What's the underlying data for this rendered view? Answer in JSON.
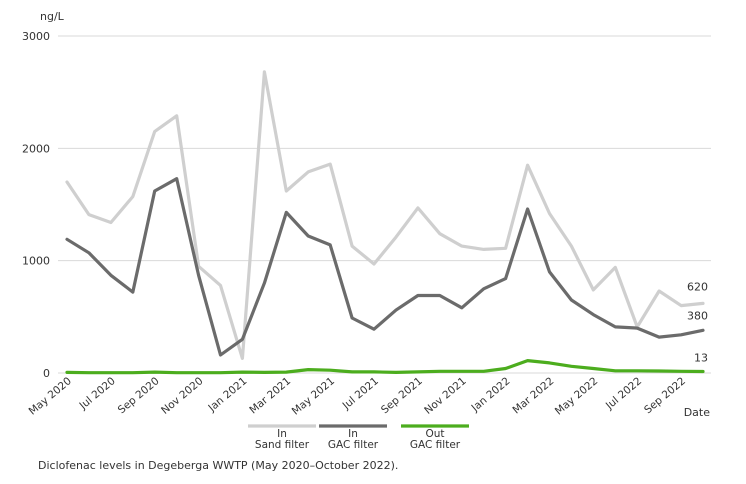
{
  "caption": "Diclofenac levels in Degeberga WWTP (May 2020–October 2022).",
  "chart_data": {
    "type": "line",
    "ylabel": "ng/L",
    "xlabel": "Date",
    "ylim": [
      0,
      3000
    ],
    "yticks": [
      0,
      1000,
      2000,
      3000
    ],
    "grid": true,
    "legend_position": "bottom",
    "x": [
      "May 2020",
      "Jun 2020",
      "Jul 2020",
      "Aug 2020",
      "Sep 2020",
      "Oct 2020",
      "Nov 2020",
      "Dec 2020",
      "Jan 2021",
      "Feb 2021",
      "Mar 2021",
      "Apr 2021",
      "May 2021",
      "Jun 2021",
      "Jul 2021",
      "Aug 2021",
      "Sep 2021",
      "Oct 2021",
      "Nov 2021",
      "Dec 2021",
      "Jan 2022",
      "Feb 2022",
      "Mar 2022",
      "Apr 2022",
      "May 2022",
      "Jun 2022",
      "Jul 2022",
      "Aug 2022",
      "Sep 2022",
      "Oct 2022"
    ],
    "x_tick_labels": [
      "May 2020",
      "Jul 2020",
      "Sep 2020",
      "Nov 2020",
      "Jan 2021",
      "Mar 2021",
      "May 2021",
      "Jul 2021",
      "Sep 2021",
      "Nov 2021",
      "Jan 2022",
      "Mar 2022",
      "May 2022",
      "Jul 2022",
      "Sep 2022"
    ],
    "series": [
      {
        "name": "In Sand filter",
        "legend_lines": [
          "In",
          "Sand filter"
        ],
        "color": "#cfcfcf",
        "values": [
          1700,
          1410,
          1340,
          1570,
          2150,
          2290,
          950,
          780,
          130,
          2680,
          1620,
          1790,
          1860,
          1130,
          970,
          1210,
          1470,
          1240,
          1130,
          1100,
          1110,
          1850,
          1420,
          1130,
          740,
          940,
          410,
          730,
          600,
          620
        ],
        "end_label": "620"
      },
      {
        "name": "In GAC filter",
        "legend_lines": [
          "In",
          "GAC filter"
        ],
        "color": "#6b6b6b",
        "values": [
          1190,
          1070,
          870,
          720,
          1620,
          1730,
          870,
          160,
          300,
          800,
          1430,
          1220,
          1140,
          490,
          390,
          560,
          690,
          690,
          580,
          750,
          840,
          1460,
          900,
          650,
          520,
          410,
          400,
          320,
          340,
          380
        ],
        "end_label": "380"
      },
      {
        "name": "Out GAC filter",
        "legend_lines": [
          "Out",
          "GAC filter"
        ],
        "color": "#4cad1e",
        "values": [
          5,
          3,
          3,
          3,
          8,
          3,
          3,
          3,
          8,
          5,
          8,
          30,
          25,
          10,
          10,
          5,
          10,
          15,
          15,
          15,
          40,
          110,
          90,
          60,
          40,
          20,
          20,
          18,
          15,
          13
        ],
        "end_label": "13"
      }
    ]
  }
}
